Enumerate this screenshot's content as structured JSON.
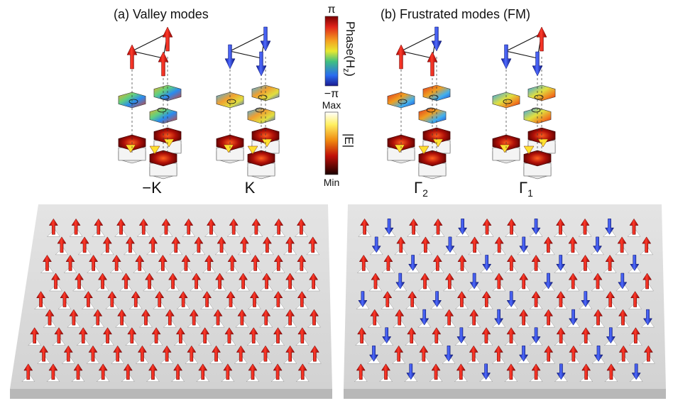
{
  "panel_a": {
    "title": "(a)  Valley modes",
    "labels": [
      "−K",
      "K"
    ]
  },
  "panel_b": {
    "title": "(b)  Frustrated modes (FM)",
    "labels": [
      "Γ",
      "Γ"
    ],
    "subscripts": [
      "2",
      "1"
    ]
  },
  "phase_colorbar": {
    "top": "π",
    "bottom": "−π",
    "title": "Phase(H",
    "title_sub": "z",
    "title_end": ")"
  },
  "field_colorbar": {
    "top": "Max",
    "bottom": "Min",
    "title": "|E|"
  },
  "colors": {
    "spin_up": "#e01010",
    "spin_down": "#1a2fd8",
    "slab": "#d6d6d6"
  },
  "slab_left": {
    "grid_rows": 9,
    "grid_cols": 12,
    "spin_pattern": "all-up"
  },
  "slab_right": {
    "grid_rows": 9,
    "grid_cols": 12,
    "spin_pattern": "2-up-1-down"
  },
  "unit_cells": [
    {
      "spins": [
        "up",
        "up",
        "up"
      ]
    },
    {
      "spins": [
        "down",
        "down",
        "down"
      ]
    },
    {
      "spins": [
        "up",
        "down",
        "up"
      ]
    },
    {
      "spins": [
        "down",
        "up",
        "down"
      ]
    }
  ]
}
